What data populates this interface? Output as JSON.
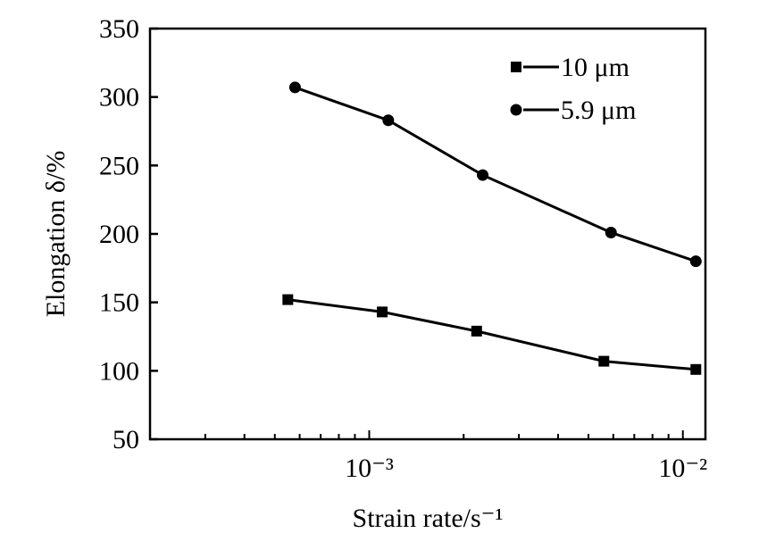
{
  "chart_data": {
    "type": "line",
    "xlabel": "Strain rate/s⁻¹",
    "ylabel": "Elongation δ/%",
    "xscale": "log",
    "xlim": [
      0.0002,
      0.0118
    ],
    "ylim": [
      50,
      350
    ],
    "yticks": [
      50,
      100,
      150,
      200,
      250,
      300,
      350
    ],
    "xticks": [
      {
        "value": 0.001,
        "label": "10⁻³"
      },
      {
        "value": 0.01,
        "label": "10⁻²"
      }
    ],
    "legend_position": "top-right",
    "grid": false,
    "series": [
      {
        "name": "10 μm",
        "marker": "square",
        "color": "#000000",
        "x": [
          0.00055,
          0.0011,
          0.0022,
          0.0056,
          0.011
        ],
        "y": [
          152,
          143,
          129,
          107,
          101
        ]
      },
      {
        "name": "5.9 μm",
        "marker": "circle",
        "color": "#000000",
        "x": [
          0.00058,
          0.00115,
          0.0023,
          0.0059,
          0.011
        ],
        "y": [
          307,
          283,
          243,
          201,
          180
        ]
      }
    ]
  }
}
